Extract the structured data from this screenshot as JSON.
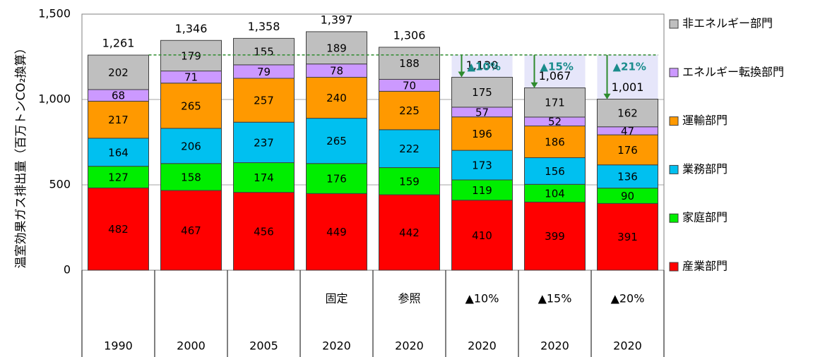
{
  "chart_data": {
    "type": "stacked_bar",
    "ylabel": "温室効果ガス排出量（百万トンCO₂換算）",
    "categories": [
      "1990",
      "2000",
      "2005",
      "2020",
      "2020",
      "2020",
      "2020",
      "2020"
    ],
    "scenarios": [
      null,
      null,
      null,
      "固定",
      "参照",
      "▲10%",
      "▲15%",
      "▲20%"
    ],
    "ylim": [
      0,
      1500
    ],
    "yticks": [
      0,
      500,
      {
        "value": 1000,
        "label": "1,000"
      },
      {
        "value": 1500,
        "label": "1,500"
      }
    ],
    "grid": true,
    "series": [
      {
        "name": "産業部門",
        "color": "#ff0000",
        "values": [
          482,
          467,
          456,
          449,
          442,
          410,
          399,
          391
        ]
      },
      {
        "name": "家庭部門",
        "color": "#00ee00",
        "values": [
          127,
          158,
          174,
          176,
          159,
          119,
          104,
          90
        ]
      },
      {
        "name": "業務部門",
        "color": "#00c0f0",
        "values": [
          164,
          206,
          237,
          265,
          222,
          173,
          156,
          136
        ]
      },
      {
        "name": "運輸部門",
        "color": "#ff9900",
        "values": [
          217,
          265,
          257,
          240,
          225,
          196,
          186,
          176
        ]
      },
      {
        "name": "エネルギー転換部門",
        "color": "#cc99ff",
        "values": [
          68,
          71,
          79,
          78,
          70,
          57,
          52,
          47
        ]
      },
      {
        "name": "非エネルギー部門",
        "color": "#bfbfbf",
        "values": [
          202,
          179,
          155,
          189,
          188,
          175,
          171,
          162
        ]
      }
    ],
    "totals": [
      1261,
      1346,
      1358,
      1397,
      1306,
      1130,
      1067,
      1001
    ],
    "total_labels": [
      "1,261",
      "1,346",
      "1,358",
      "1,397",
      "1,306",
      "1,130",
      "1,067",
      "1,001"
    ],
    "reductions": [
      null,
      null,
      null,
      null,
      null,
      "▲10%",
      "▲15%",
      "▲21%"
    ]
  }
}
